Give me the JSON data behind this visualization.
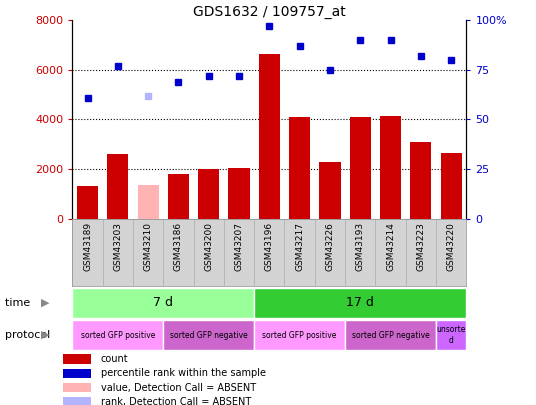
{
  "title": "GDS1632 / 109757_at",
  "samples": [
    "GSM43189",
    "GSM43203",
    "GSM43210",
    "GSM43186",
    "GSM43200",
    "GSM43207",
    "GSM43196",
    "GSM43217",
    "GSM43226",
    "GSM43193",
    "GSM43214",
    "GSM43223",
    "GSM43220"
  ],
  "counts": [
    1300,
    2600,
    1350,
    1800,
    2000,
    2050,
    6650,
    4100,
    2300,
    4100,
    4150,
    3100,
    2650
  ],
  "count_absent": [
    false,
    false,
    true,
    false,
    false,
    false,
    false,
    false,
    false,
    false,
    false,
    false,
    false
  ],
  "percentile_ranks": [
    61,
    77,
    62,
    69,
    72,
    72,
    97,
    87,
    75,
    90,
    90,
    82,
    80
  ],
  "rank_absent": [
    false,
    false,
    true,
    false,
    false,
    false,
    false,
    false,
    false,
    false,
    false,
    false,
    false
  ],
  "bar_color_normal": "#cc0000",
  "bar_color_absent": "#ffb3b3",
  "dot_color_normal": "#0000cc",
  "dot_color_absent": "#b3b3ff",
  "ylim_left": [
    0,
    8000
  ],
  "ylim_right": [
    0,
    100
  ],
  "yticks_left": [
    0,
    2000,
    4000,
    6000,
    8000
  ],
  "yticks_right": [
    0,
    25,
    50,
    75,
    100
  ],
  "time_groups": [
    {
      "label": "7 d",
      "start": 0,
      "end": 6,
      "color": "#99ff99"
    },
    {
      "label": "17 d",
      "start": 6,
      "end": 13,
      "color": "#33cc33"
    }
  ],
  "protocol_groups": [
    {
      "label": "sorted GFP positive",
      "start": 0,
      "end": 3,
      "color": "#ff99ff"
    },
    {
      "label": "sorted GFP negative",
      "start": 3,
      "end": 6,
      "color": "#cc66cc"
    },
    {
      "label": "sorted GFP positive",
      "start": 6,
      "end": 9,
      "color": "#ff99ff"
    },
    {
      "label": "sorted GFP negative",
      "start": 9,
      "end": 12,
      "color": "#cc66cc"
    },
    {
      "label": "unsorte\nd",
      "start": 12,
      "end": 13,
      "color": "#cc66ff"
    }
  ],
  "legend_items": [
    {
      "label": "count",
      "color": "#cc0000"
    },
    {
      "label": "percentile rank within the sample",
      "color": "#0000cc"
    },
    {
      "label": "value, Detection Call = ABSENT",
      "color": "#ffb3b3"
    },
    {
      "label": "rank, Detection Call = ABSENT",
      "color": "#b3b3ff"
    }
  ],
  "bg_color": "#ffffff",
  "sample_bg_color": "#d3d3d3",
  "grid_color": "#000000"
}
